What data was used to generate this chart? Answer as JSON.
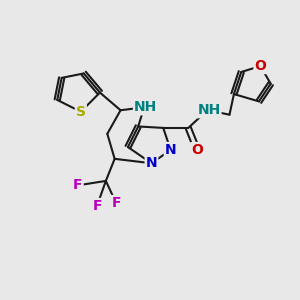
{
  "background_color": "#e8e8e8",
  "bond_color": "#1a1a1a",
  "bond_width": 1.5,
  "atom_colors": {
    "N": "#0000cc",
    "O": "#cc0000",
    "S": "#aaaa00",
    "F": "#bb00bb",
    "NH": "#008080",
    "C": "#1a1a1a"
  },
  "font_size": 10,
  "font_size_small": 8.5
}
